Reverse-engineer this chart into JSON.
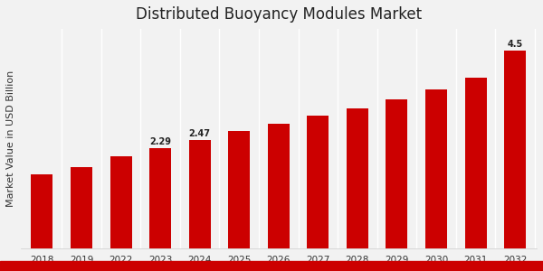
{
  "title": "Distributed Buoyancy Modules Market",
  "ylabel": "Market Value in USD Billion",
  "categories": [
    "2018",
    "2019",
    "2022",
    "2023",
    "2024",
    "2025",
    "2026",
    "2027",
    "2028",
    "2029",
    "2030",
    "2031",
    "2032"
  ],
  "values": [
    1.7,
    1.85,
    2.1,
    2.29,
    2.47,
    2.68,
    2.85,
    3.02,
    3.2,
    3.4,
    3.62,
    3.9,
    4.5
  ],
  "bar_color": "#CC0000",
  "labeled_bars": {
    "2023": "2.29",
    "2024": "2.47",
    "2032": "4.5"
  },
  "title_fontsize": 12,
  "ylabel_fontsize": 8,
  "tick_fontsize": 7.5,
  "label_fontsize": 7,
  "bg_color": "#f2f2f2",
  "bottom_bar_color": "#CC0000",
  "bottom_bar_height": 0.03,
  "white_line_color": "#ffffff",
  "ylim": [
    0,
    5.0
  ]
}
